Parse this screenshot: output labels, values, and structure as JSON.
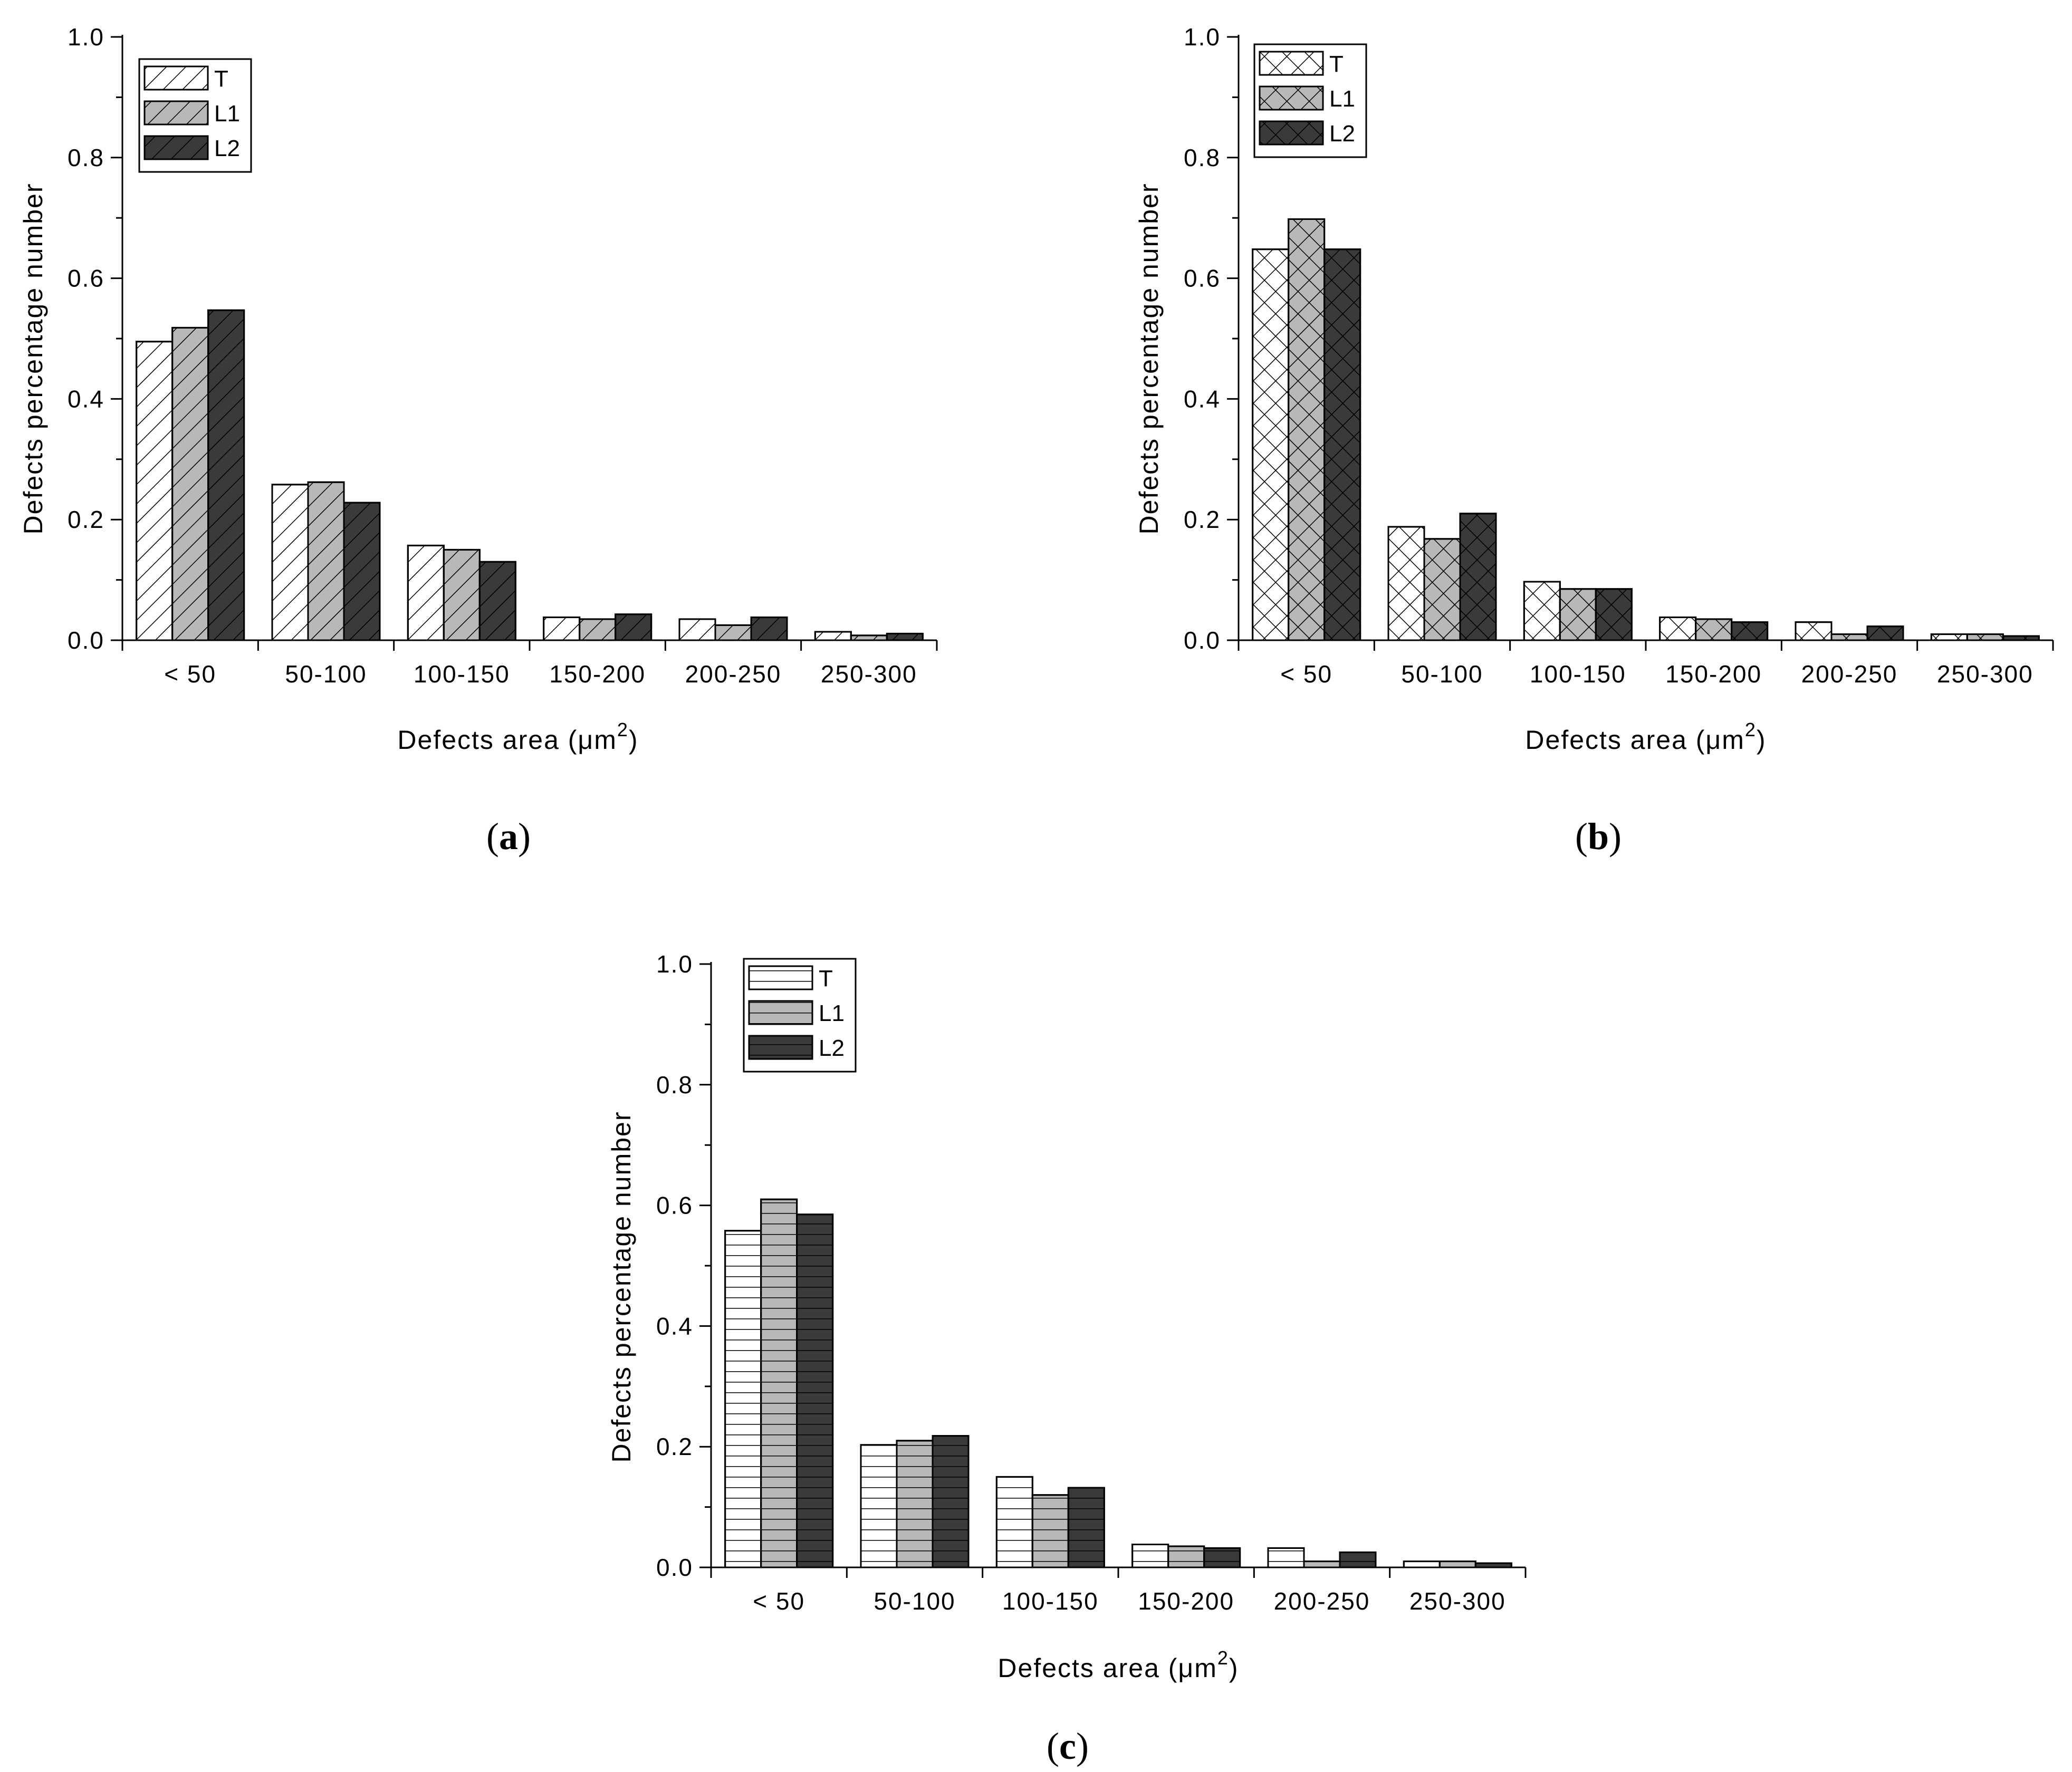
{
  "figure": {
    "captions": [
      "(a)",
      "(b)",
      "(c)"
    ]
  },
  "chart_data": [
    {
      "panel": "(a)",
      "caption_letter": "a",
      "type": "bar",
      "pattern": "diagonal",
      "xlabel_main": "Defects area (",
      "xlabel_unit": "μm",
      "xlabel_sup": "2",
      "xlabel_close": ")",
      "ylabel": "Defects percentage number",
      "ylim": [
        0,
        1.0
      ],
      "yticks": [
        "0.0",
        "0.2",
        "0.4",
        "0.6",
        "0.8",
        "1.0"
      ],
      "categories": [
        "< 50",
        "50-100",
        "100-150",
        "150-200",
        "200-250",
        "250-300"
      ],
      "series": [
        {
          "name": "T",
          "fill": "#ffffff",
          "values": [
            0.495,
            0.258,
            0.157,
            0.038,
            0.035,
            0.014
          ]
        },
        {
          "name": "L1",
          "fill": "#b8b8b8",
          "values": [
            0.518,
            0.262,
            0.15,
            0.035,
            0.025,
            0.008
          ]
        },
        {
          "name": "L2",
          "fill": "#3a3a3a",
          "values": [
            0.547,
            0.228,
            0.13,
            0.043,
            0.038,
            0.011
          ]
        }
      ],
      "legend_position": "top-left"
    },
    {
      "panel": "(b)",
      "caption_letter": "b",
      "type": "bar",
      "pattern": "crosshatch",
      "xlabel_main": "Defects area (",
      "xlabel_unit": "μm",
      "xlabel_sup": "2",
      "xlabel_close": ")",
      "ylabel": "Defects percentage number",
      "ylim": [
        0,
        1.0
      ],
      "yticks": [
        "0.0",
        "0.2",
        "0.4",
        "0.6",
        "0.8",
        "1.0"
      ],
      "categories": [
        "< 50",
        "50-100",
        "100-150",
        "150-200",
        "200-250",
        "250-300"
      ],
      "series": [
        {
          "name": "T",
          "fill": "#ffffff",
          "values": [
            0.648,
            0.188,
            0.097,
            0.038,
            0.03,
            0.01
          ]
        },
        {
          "name": "L1",
          "fill": "#b8b8b8",
          "values": [
            0.698,
            0.168,
            0.085,
            0.035,
            0.01,
            0.01
          ]
        },
        {
          "name": "L2",
          "fill": "#3a3a3a",
          "values": [
            0.648,
            0.21,
            0.085,
            0.03,
            0.023,
            0.007
          ]
        }
      ],
      "legend_position": "top-left"
    },
    {
      "panel": "(c)",
      "caption_letter": "c",
      "type": "bar",
      "pattern": "horizontal",
      "xlabel_main": "Defects area (",
      "xlabel_unit": "μm",
      "xlabel_sup": "2",
      "xlabel_close": ")",
      "ylabel": "Defects percentage number",
      "ylim": [
        0,
        1.0
      ],
      "yticks": [
        "0.0",
        "0.2",
        "0.4",
        "0.6",
        "0.8",
        "1.0"
      ],
      "categories": [
        "< 50",
        "50-100",
        "100-150",
        "150-200",
        "200-250",
        "250-300"
      ],
      "series": [
        {
          "name": "T",
          "fill": "#ffffff",
          "values": [
            0.558,
            0.203,
            0.15,
            0.038,
            0.032,
            0.01
          ]
        },
        {
          "name": "L1",
          "fill": "#b8b8b8",
          "values": [
            0.61,
            0.21,
            0.12,
            0.035,
            0.01,
            0.01
          ]
        },
        {
          "name": "L2",
          "fill": "#3a3a3a",
          "values": [
            0.585,
            0.218,
            0.132,
            0.032,
            0.025,
            0.007
          ]
        }
      ],
      "legend_position": "top-left"
    }
  ]
}
